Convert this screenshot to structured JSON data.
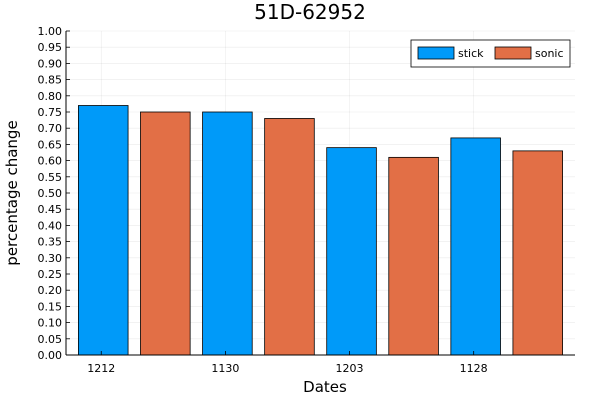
{
  "chart_data": {
    "type": "bar",
    "title": "51D-62952",
    "xlabel": "Dates",
    "ylabel": "percentage change",
    "ylim": [
      0,
      1.0
    ],
    "ytick_step": 0.05,
    "grid": true,
    "legend_position": "top-right",
    "categories": [
      "1212",
      "1130",
      "1203",
      "1128"
    ],
    "series": [
      {
        "name": "stick",
        "color": "#009AF9"
      },
      {
        "name": "sonic",
        "color": "#E26F46"
      }
    ],
    "bars": [
      {
        "series": "stick",
        "value": 0.77
      },
      {
        "series": "sonic",
        "value": 0.75
      },
      {
        "series": "stick",
        "value": 0.75
      },
      {
        "series": "sonic",
        "value": 0.73
      },
      {
        "series": "stick",
        "value": 0.64
      },
      {
        "series": "sonic",
        "value": 0.61
      },
      {
        "series": "stick",
        "value": 0.67
      },
      {
        "series": "sonic",
        "value": 0.63
      }
    ]
  }
}
